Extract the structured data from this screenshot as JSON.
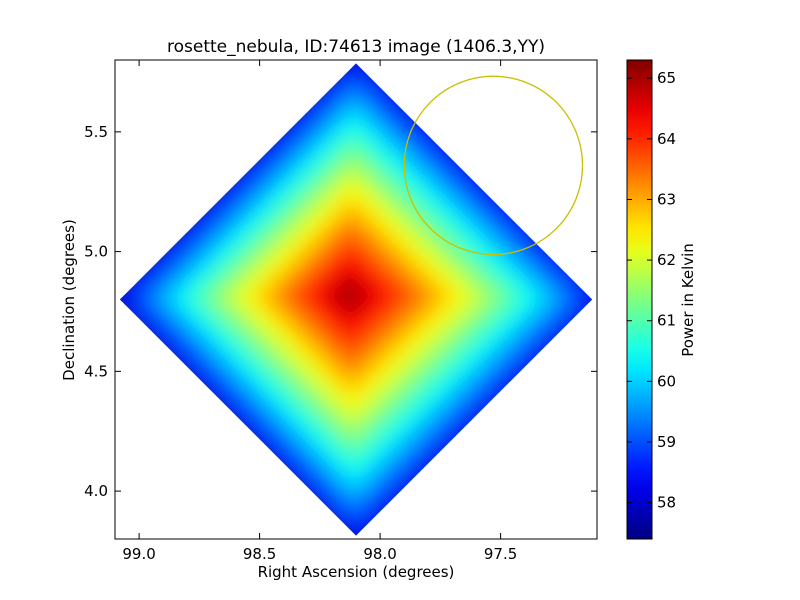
{
  "chart_data": {
    "type": "heatmap",
    "title": "rosette_nebula, ID:74613 image (1406.3,YY)",
    "xlabel": "Right Ascension (degrees)",
    "ylabel": "Declination (degrees)",
    "xlim": [
      99.1,
      97.1
    ],
    "ylim": [
      3.8,
      5.8
    ],
    "x_ticks": [
      99.0,
      98.5,
      98.0,
      97.5
    ],
    "x_tick_labels": [
      "99.0",
      "98.5",
      "98.0",
      "97.5"
    ],
    "y_ticks": [
      4.0,
      4.5,
      5.0,
      5.5
    ],
    "y_tick_labels": [
      "4.0",
      "4.5",
      "5.0",
      "5.5"
    ],
    "colormap": "jet",
    "colorbar": {
      "label": "Power in Kelvin",
      "range": [
        57.4,
        65.3
      ],
      "ticks": [
        58,
        59,
        60,
        61,
        62,
        63,
        64,
        65
      ],
      "tick_labels": [
        "58",
        "59",
        "60",
        "61",
        "62",
        "63",
        "64",
        "65"
      ]
    },
    "map": {
      "center_ra": 98.1,
      "center_dec": 4.8,
      "half_diagonal_deg": 0.98,
      "peak_ra": 98.13,
      "peak_dec": 4.82,
      "peak_value": 65.3,
      "edge_value": 57.4
    },
    "overlay_circle": {
      "center_ra": 97.53,
      "center_dec": 5.36,
      "radius_deg": 0.37,
      "color": "#c8c000"
    }
  }
}
